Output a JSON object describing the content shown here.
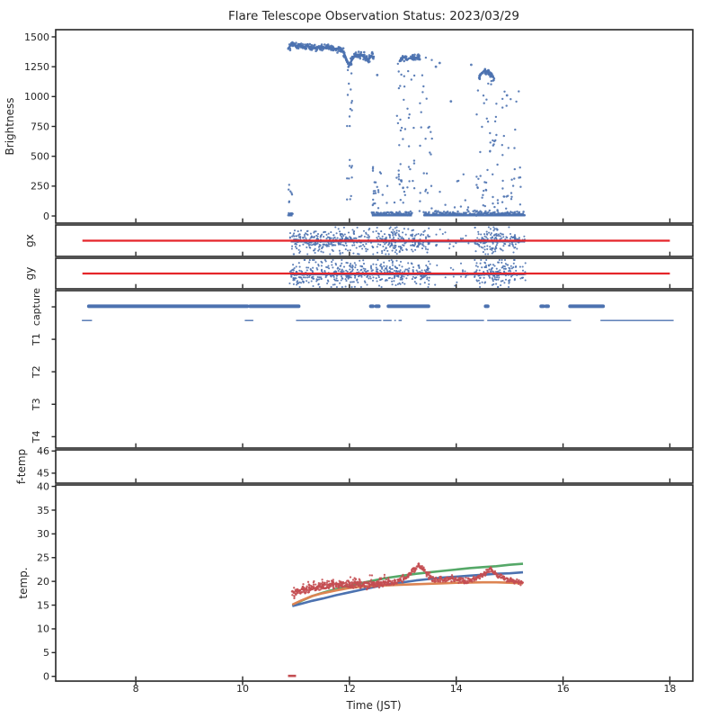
{
  "title": "Flare Telescope Observation Status: 2023/03/29",
  "xlabel": "Time (JST)",
  "x_axis": {
    "lim": [
      6.5,
      18.43
    ],
    "ticks": [
      8,
      10,
      12,
      14,
      16,
      18
    ]
  },
  "colors": {
    "scatter_blue": "#4c72b0",
    "guide_red": "#e5252a",
    "temp_red": "#c44e52",
    "temp_green": "#55a868",
    "temp_orange": "#dd8452",
    "temp_blue": "#4c72b0",
    "axis": "#262626"
  },
  "seed": 42,
  "chart_data": [
    {
      "id": "brightness",
      "type": "scatter",
      "ylabel": "Brightness",
      "ylabel_x": 15,
      "ylim": [
        -60,
        1560
      ],
      "yticks": [
        0,
        250,
        500,
        750,
        1000,
        1250,
        1500
      ],
      "plateau": [
        [
          10.87,
          1410
        ],
        [
          10.9,
          1432
        ],
        [
          10.93,
          1446
        ],
        [
          10.97,
          1438
        ],
        [
          11.0,
          1420
        ],
        [
          11.05,
          1436
        ],
        [
          11.1,
          1424
        ],
        [
          11.17,
          1414
        ],
        [
          11.22,
          1426
        ],
        [
          11.3,
          1404
        ],
        [
          11.38,
          1412
        ],
        [
          11.45,
          1404
        ],
        [
          11.52,
          1410
        ],
        [
          11.6,
          1416
        ],
        [
          11.68,
          1408
        ],
        [
          11.75,
          1398
        ],
        [
          11.82,
          1401
        ],
        [
          11.88,
          1378
        ],
        [
          11.92,
          1340
        ],
        [
          11.96,
          1295
        ],
        [
          12.0,
          1268
        ],
        [
          12.03,
          1292
        ],
        [
          12.07,
          1332
        ],
        [
          12.12,
          1350
        ],
        [
          12.18,
          1352
        ],
        [
          12.24,
          1344
        ],
        [
          12.3,
          1318
        ],
        [
          12.36,
          1308
        ],
        [
          12.41,
          1342
        ],
        [
          12.46,
          1332
        ]
      ],
      "zero_value": 5,
      "zero_segments": [
        [
          10.855,
          10.935
        ],
        [
          12.42,
          13.17
        ],
        [
          13.39,
          15.28
        ]
      ],
      "clusters": [
        [
          [
            12.93,
            1290
          ],
          [
            12.98,
            1320
          ],
          [
            13.03,
            1330
          ],
          [
            13.08,
            1305
          ],
          [
            13.12,
            1322
          ],
          [
            13.2,
            1318
          ],
          [
            13.28,
            1330
          ],
          [
            13.33,
            1308
          ]
        ],
        [
          [
            14.42,
            1150
          ],
          [
            14.47,
            1196
          ],
          [
            14.52,
            1212
          ],
          [
            14.58,
            1208
          ],
          [
            14.63,
            1190
          ],
          [
            14.68,
            1170
          ],
          [
            14.72,
            1146
          ]
        ]
      ],
      "columns": [
        {
          "t": [
            11.95,
            12.05
          ],
          "v": [
            120,
            1260
          ],
          "n": 22
        },
        {
          "t": [
            12.42,
            12.6
          ],
          "v": [
            5,
            420
          ],
          "n": 20
        },
        {
          "t": [
            12.88,
            13.22
          ],
          "v": [
            0,
            1300
          ],
          "n": 46
        },
        {
          "t": [
            13.32,
            13.55
          ],
          "v": [
            0,
            1340
          ],
          "n": 22
        },
        {
          "t": [
            14.38,
            14.78
          ],
          "v": [
            0,
            1140
          ],
          "n": 42
        },
        {
          "t": [
            14.85,
            15.25
          ],
          "v": [
            0,
            1060
          ],
          "n": 26
        },
        {
          "t": [
            10.86,
            10.93
          ],
          "v": [
            0,
            320
          ],
          "n": 8
        },
        {
          "t": [
            12.42,
            15.28
          ],
          "v": [
            0,
            360
          ],
          "n": 46
        }
      ],
      "isolated": [
        [
          13.69,
          1281
        ],
        [
          14.28,
          1266
        ],
        [
          12.52,
          1180
        ],
        [
          13.9,
          960
        ],
        [
          14.95,
          1010
        ],
        [
          13.62,
          1250
        ]
      ]
    },
    {
      "id": "gx",
      "type": "scatter",
      "ylabel": "gx",
      "ylabel_x": 37,
      "ylim": [
        -1,
        1
      ],
      "yticks": [],
      "guide_line": {
        "t": [
          7.0,
          18.0
        ],
        "v": 0
      },
      "center_band": {
        "t": [
          10.9,
          15.28
        ]
      },
      "scatter_segments": [
        {
          "t": [
            10.88,
            12.45
          ],
          "n": 290
        },
        {
          "t": [
            12.5,
            13.04
          ],
          "n": 110
        },
        {
          "t": [
            13.05,
            13.52
          ],
          "n": 72
        },
        {
          "t": [
            13.55,
            14.32
          ],
          "n": 18
        },
        {
          "t": [
            14.34,
            15.12
          ],
          "n": 155
        },
        {
          "t": [
            15.12,
            15.3
          ],
          "n": 12
        }
      ]
    },
    {
      "id": "gy",
      "type": "scatter",
      "ylabel": "gy",
      "ylabel_x": 37,
      "ylim": [
        -1,
        1
      ],
      "yticks": [],
      "guide_line": {
        "t": [
          7.0,
          18.0
        ],
        "v": 0
      },
      "center_band": {
        "t": [
          10.9,
          15.28
        ]
      },
      "scatter_segments": [
        {
          "t": [
            10.88,
            12.45
          ],
          "n": 290
        },
        {
          "t": [
            12.5,
            13.04
          ],
          "n": 110
        },
        {
          "t": [
            13.05,
            13.52
          ],
          "n": 72
        },
        {
          "t": [
            13.55,
            14.32
          ],
          "n": 18
        },
        {
          "t": [
            14.34,
            15.12
          ],
          "n": 155
        },
        {
          "t": [
            15.12,
            15.3
          ],
          "n": 12
        }
      ]
    },
    {
      "id": "capture",
      "type": "status",
      "ylabel": "",
      "ylabel_x": 44,
      "ylim": [
        -0.35,
        4.5
      ],
      "yticks": [],
      "categories": [
        {
          "label": "capture",
          "value": 4
        },
        {
          "label": "T1",
          "value": 3
        },
        {
          "label": "T2",
          "value": 2
        },
        {
          "label": "T3",
          "value": 1
        },
        {
          "label": "T4",
          "value": 0
        }
      ],
      "thick_row": {
        "value": 4.02,
        "segments": [
          [
            7.12,
            10.09
          ],
          [
            10.14,
            11.05
          ],
          [
            12.4,
            12.44
          ],
          [
            12.5,
            12.55
          ],
          [
            12.73,
            13.48
          ],
          [
            14.55,
            14.59
          ],
          [
            15.59,
            15.63
          ],
          [
            15.68,
            15.72
          ],
          [
            16.13,
            16.75
          ]
        ]
      },
      "thin_row": {
        "value": 3.58,
        "segments": [
          [
            6.99,
            7.18
          ],
          [
            10.04,
            10.2
          ],
          [
            11.0,
            12.6
          ],
          [
            12.63,
            12.79
          ],
          [
            12.84,
            12.87
          ],
          [
            12.92,
            12.98
          ],
          [
            13.44,
            14.52
          ],
          [
            14.58,
            16.15
          ],
          [
            16.7,
            18.07
          ]
        ]
      }
    },
    {
      "id": "ftemp",
      "type": "empty",
      "ylabel": "f-temp",
      "ylabel_x": 28,
      "ylim": [
        44.55,
        46.05
      ],
      "yticks": [
        45,
        46
      ]
    },
    {
      "id": "temp",
      "type": "line",
      "ylabel": "temp.",
      "ylabel_x": 30,
      "ylim": [
        -1,
        40.3
      ],
      "yticks": [
        0,
        5,
        10,
        15,
        20,
        25,
        30,
        35,
        40
      ],
      "series": [
        {
          "name": "green",
          "color": "temp_green",
          "points": [
            [
              10.93,
              14.9
            ],
            [
              11.1,
              15.9
            ],
            [
              11.3,
              16.9
            ],
            [
              11.5,
              17.6
            ],
            [
              11.75,
              18.4
            ],
            [
              12.0,
              19.0
            ],
            [
              12.25,
              19.7
            ],
            [
              12.5,
              20.3
            ],
            [
              12.75,
              20.8
            ],
            [
              13.0,
              21.2
            ],
            [
              13.25,
              21.6
            ],
            [
              13.5,
              21.9
            ],
            [
              13.75,
              22.2
            ],
            [
              14.0,
              22.5
            ],
            [
              14.25,
              22.8
            ],
            [
              14.5,
              23.0
            ],
            [
              14.75,
              23.2
            ],
            [
              15.0,
              23.5
            ],
            [
              15.25,
              23.7
            ]
          ]
        },
        {
          "name": "blue",
          "color": "temp_blue",
          "points": [
            [
              10.93,
              14.8
            ],
            [
              11.1,
              15.3
            ],
            [
              11.3,
              15.9
            ],
            [
              11.5,
              16.4
            ],
            [
              11.75,
              17.1
            ],
            [
              12.0,
              17.7
            ],
            [
              12.25,
              18.3
            ],
            [
              12.5,
              18.9
            ],
            [
              12.75,
              19.4
            ],
            [
              13.0,
              19.8
            ],
            [
              13.25,
              20.2
            ],
            [
              13.5,
              20.5
            ],
            [
              13.75,
              20.8
            ],
            [
              14.0,
              21.0
            ],
            [
              14.25,
              21.2
            ],
            [
              14.5,
              21.4
            ],
            [
              14.75,
              21.6
            ],
            [
              15.0,
              21.7
            ],
            [
              15.25,
              21.9
            ]
          ]
        },
        {
          "name": "orange",
          "color": "temp_orange",
          "points": [
            [
              10.93,
              15.1
            ],
            [
              11.1,
              16.0
            ],
            [
              11.3,
              16.9
            ],
            [
              11.5,
              17.5
            ],
            [
              11.75,
              18.1
            ],
            [
              12.0,
              18.6
            ],
            [
              12.25,
              18.9
            ],
            [
              12.5,
              19.1
            ],
            [
              12.75,
              19.2
            ],
            [
              13.0,
              19.3
            ],
            [
              13.25,
              19.4
            ],
            [
              13.5,
              19.5
            ],
            [
              13.75,
              19.6
            ],
            [
              14.0,
              19.7
            ],
            [
              14.25,
              19.75
            ],
            [
              14.5,
              19.8
            ],
            [
              14.75,
              19.8
            ],
            [
              15.0,
              19.7
            ],
            [
              15.25,
              19.6
            ]
          ]
        }
      ],
      "noisy_series": {
        "name": "red",
        "color": "temp_red",
        "center": [
          [
            10.93,
            17.2
          ],
          [
            11.05,
            17.8
          ],
          [
            11.2,
            18.2
          ],
          [
            11.35,
            18.5
          ],
          [
            11.5,
            18.8
          ],
          [
            11.7,
            19.1
          ],
          [
            11.9,
            19.2
          ],
          [
            12.1,
            19.3
          ],
          [
            12.3,
            19.2
          ],
          [
            12.5,
            19.3
          ],
          [
            12.7,
            19.5
          ],
          [
            12.9,
            19.9
          ],
          [
            13.05,
            20.8
          ],
          [
            13.2,
            22.4
          ],
          [
            13.3,
            23.3
          ],
          [
            13.4,
            22.3
          ],
          [
            13.5,
            21.0
          ],
          [
            13.6,
            20.4
          ],
          [
            13.75,
            20.3
          ],
          [
            13.9,
            20.5
          ],
          [
            14.0,
            20.4
          ],
          [
            14.15,
            20.2
          ],
          [
            14.3,
            20.3
          ],
          [
            14.45,
            21.0
          ],
          [
            14.55,
            21.8
          ],
          [
            14.65,
            22.5
          ],
          [
            14.75,
            21.5
          ],
          [
            14.85,
            20.7
          ],
          [
            15.0,
            20.2
          ],
          [
            15.1,
            20.0
          ],
          [
            15.25,
            19.8
          ]
        ],
        "noise_sd": 0.3,
        "upper_cloud": {
          "t": [
            10.95,
            12.75
          ],
          "n": 150,
          "sd": 0.55,
          "offset": 0.25
        },
        "zero_dash": {
          "t": [
            10.85,
            11.0
          ],
          "v": 0.1
        }
      }
    }
  ]
}
